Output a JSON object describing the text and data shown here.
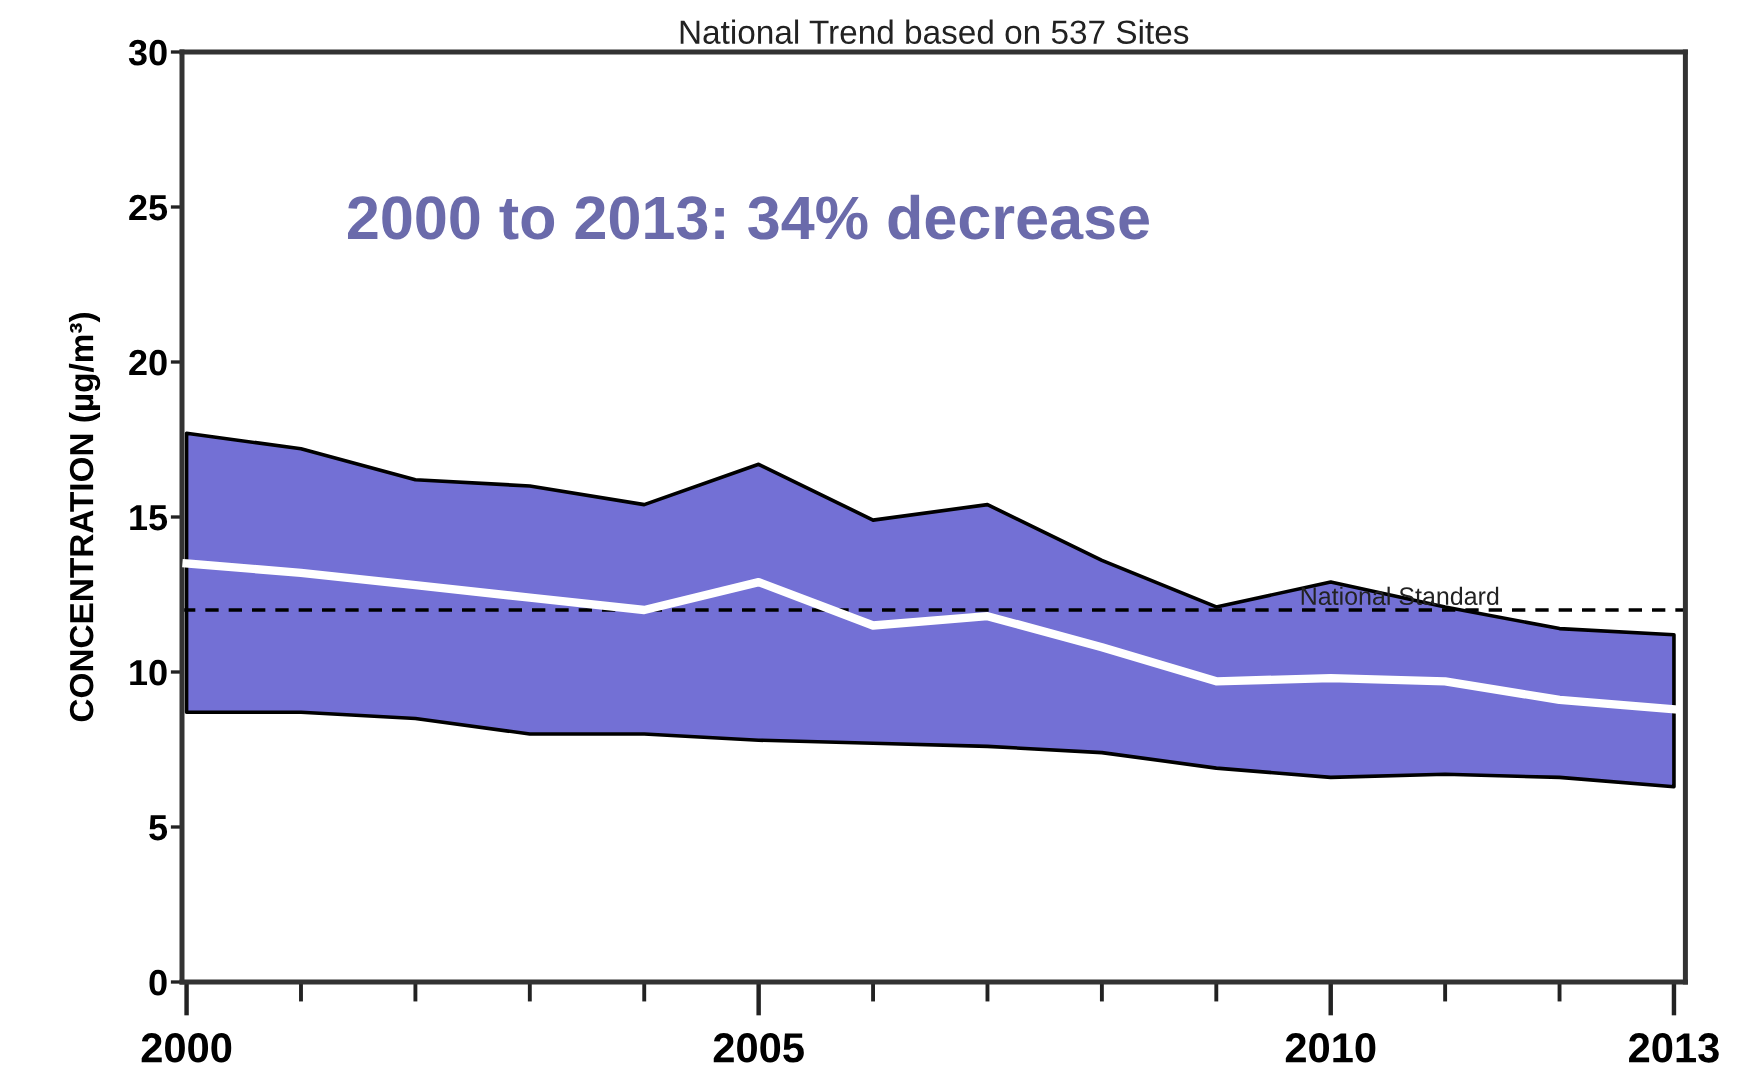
{
  "chart_data": {
    "type": "line",
    "title": "National Trend based on 537 Sites",
    "ylabel": "CONCENTRATION (µg/m³)",
    "annotations": [
      "2000 to 2013: 34% decrease"
    ],
    "x": [
      2000,
      2001,
      2002,
      2003,
      2004,
      2005,
      2006,
      2007,
      2008,
      2009,
      2010,
      2011,
      2012,
      2013
    ],
    "series": [
      {
        "color": "#ffffff",
        "values": [
          13.5,
          13.2,
          12.8,
          12.4,
          12.0,
          12.9,
          11.5,
          11.8,
          10.8,
          9.7,
          9.8,
          9.7,
          9.1,
          8.8
        ],
        "lower": [
          8.7,
          8.7,
          8.5,
          8.0,
          8.0,
          7.8,
          7.7,
          7.6,
          7.4,
          6.9,
          6.6,
          6.7,
          6.6,
          6.3
        ],
        "upper": [
          17.7,
          17.2,
          16.2,
          16.0,
          15.4,
          16.7,
          14.9,
          15.4,
          13.6,
          12.1,
          12.9,
          12.1,
          11.4,
          11.2
        ]
      }
    ],
    "xlim": [
      1999.96,
      2013.1
    ],
    "xticks": [
      2000,
      {
        "value": 2001,
        "label": null
      },
      {
        "value": 2002,
        "label": null
      },
      {
        "value": 2003,
        "label": null
      },
      {
        "value": 2004,
        "label": null
      },
      2005,
      {
        "value": 2006,
        "label": null
      },
      {
        "value": 2007,
        "label": null
      },
      {
        "value": 2008,
        "label": null
      },
      {
        "value": 2009,
        "label": null
      },
      2010,
      {
        "value": 2011,
        "label": null
      },
      {
        "value": 2012,
        "label": null
      },
      2013
    ],
    "ylim": [
      0,
      30
    ],
    "yticks": [
      0,
      5,
      10,
      15,
      20,
      25,
      30
    ],
    "ref_lines": [
      {
        "axis": "y",
        "value": 12,
        "label": "National Standard",
        "color": "#000000",
        "line_style": "dashed"
      }
    ]
  }
}
